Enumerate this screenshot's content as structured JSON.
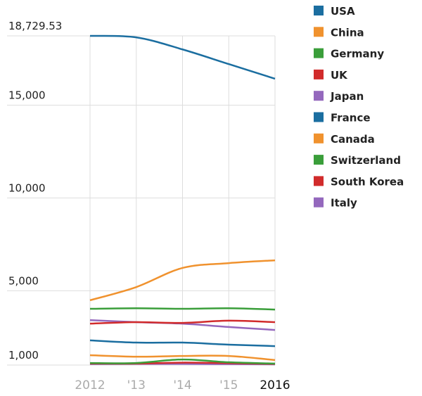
{
  "chart_data": {
    "type": "line",
    "title": "",
    "xlabel": "",
    "ylabel": "",
    "x": [
      "2012",
      "'13",
      "'14",
      "'15",
      "2016"
    ],
    "y_ticks": [
      "18,729.53",
      "15,000",
      "10,000",
      "5,000",
      "1,000"
    ],
    "y_tick_values": [
      18729.53,
      15000,
      10000,
      5000,
      1000
    ],
    "ylim": [
      1000,
      18729.53
    ],
    "grid": true,
    "legend_position": "right",
    "series": [
      {
        "name": "USA",
        "color": "#1b6ea0",
        "values": [
          18730,
          18650,
          18000,
          17210,
          16420
        ]
      },
      {
        "name": "China",
        "color": "#f0922e",
        "values": [
          4490,
          5200,
          6230,
          6490,
          6640
        ]
      },
      {
        "name": "Germany",
        "color": "#3a9e3a",
        "values": [
          4030,
          4060,
          4030,
          4060,
          3990
        ]
      },
      {
        "name": "UK",
        "color": "#d12b2b",
        "values": [
          3230,
          3310,
          3270,
          3390,
          3310
        ]
      },
      {
        "name": "Japan",
        "color": "#9468bd",
        "values": [
          3420,
          3310,
          3230,
          3050,
          2890
        ]
      },
      {
        "name": "France",
        "color": "#1b6ea0",
        "values": [
          2330,
          2210,
          2210,
          2100,
          2020
        ]
      },
      {
        "name": "Canada",
        "color": "#f0922e",
        "values": [
          1530,
          1450,
          1490,
          1490,
          1270
        ]
      },
      {
        "name": "Switzerland",
        "color": "#3a9e3a",
        "values": [
          1110,
          1110,
          1300,
          1150,
          1080
        ]
      },
      {
        "name": "South Korea",
        "color": "#d12b2b",
        "values": [
          1080,
          1080,
          1130,
          1100,
          1060
        ]
      },
      {
        "name": "Italy",
        "color": "#9468bd",
        "values": [
          1050,
          1060,
          1060,
          1050,
          1040
        ]
      }
    ]
  }
}
